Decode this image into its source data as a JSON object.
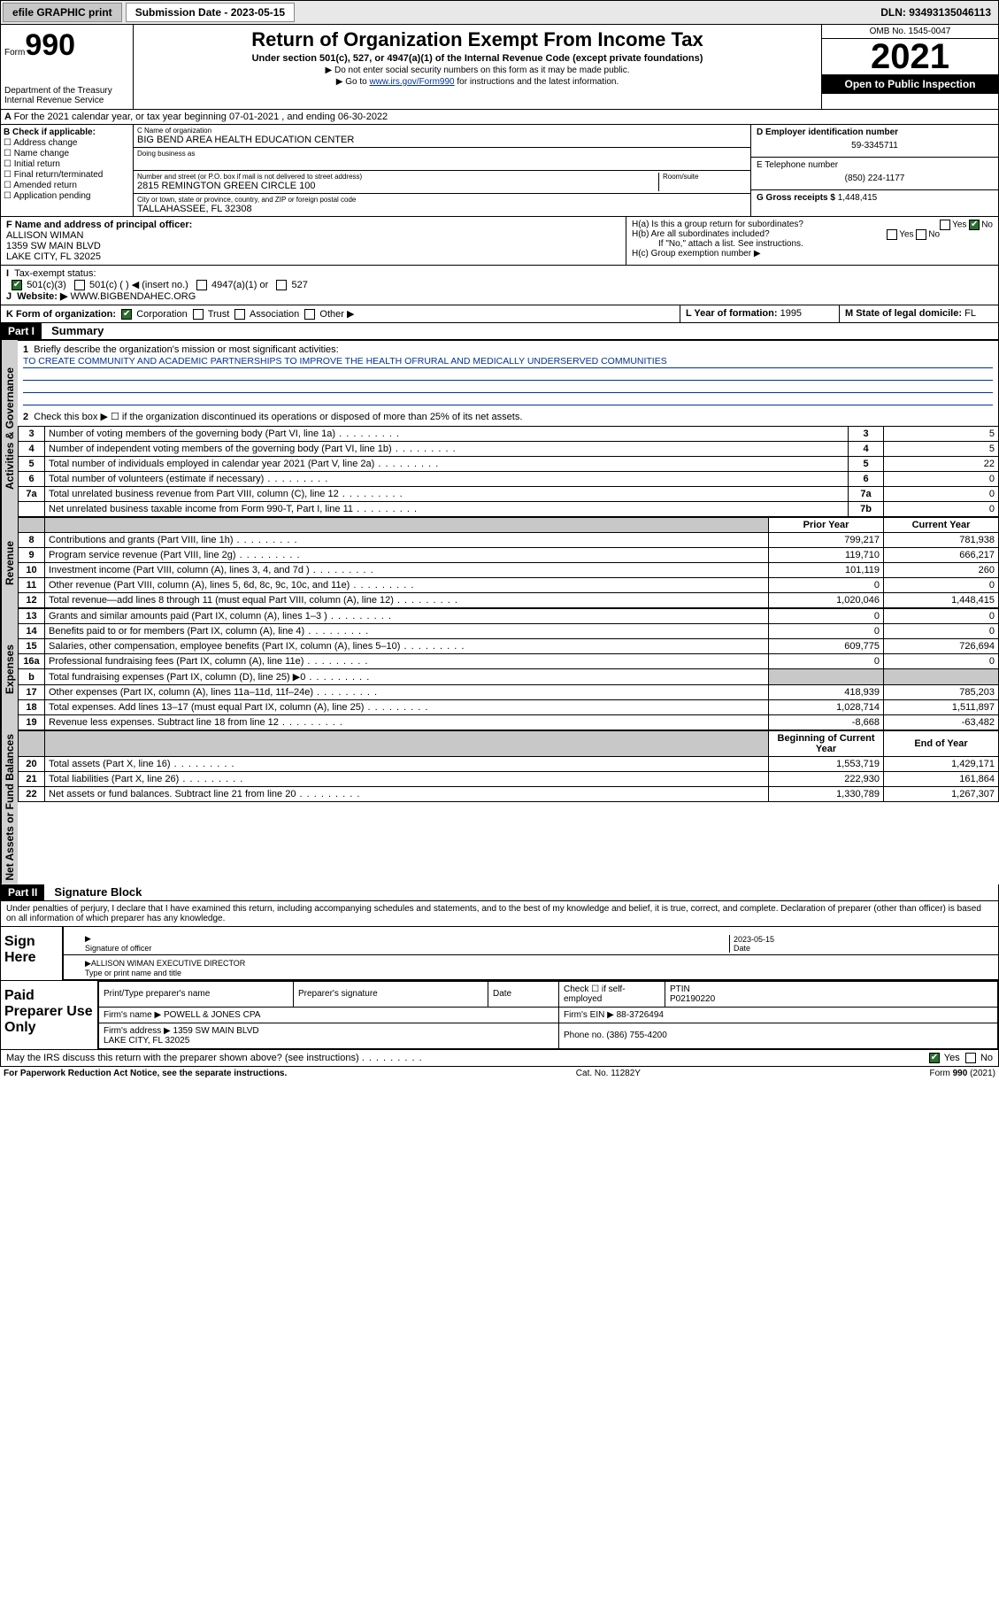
{
  "topbar": {
    "efile": "efile GRAPHIC print",
    "subdate_label": "Submission Date - 2023-05-15",
    "dln": "DLN: 93493135046113"
  },
  "header": {
    "form_word": "Form",
    "form_num": "990",
    "dept": "Department of the Treasury\nInternal Revenue Service",
    "title": "Return of Organization Exempt From Income Tax",
    "subtitle": "Under section 501(c), 527, or 4947(a)(1) of the Internal Revenue Code (except private foundations)",
    "note1": "▶ Do not enter social security numbers on this form as it may be made public.",
    "note2_pre": "▶ Go to ",
    "note2_link": "www.irs.gov/Form990",
    "note2_post": " for instructions and the latest information.",
    "omb": "OMB No. 1545-0047",
    "year": "2021",
    "open": "Open to Public Inspection"
  },
  "line_a": "For the 2021 calendar year, or tax year beginning 07-01-2021    , and ending 06-30-2022",
  "box_b": {
    "title": "B Check if applicable:",
    "items": [
      "Address change",
      "Name change",
      "Initial return",
      "Final return/terminated",
      "Amended return",
      "Application pending"
    ]
  },
  "box_c": {
    "name_lbl": "C Name of organization",
    "name": "BIG BEND AREA HEALTH EDUCATION CENTER",
    "dba_lbl": "Doing business as",
    "addr_lbl": "Number and street (or P.O. box if mail is not delivered to street address)",
    "room_lbl": "Room/suite",
    "addr": "2815 REMINGTON GREEN CIRCLE 100",
    "city_lbl": "City or town, state or province, country, and ZIP or foreign postal code",
    "city": "TALLAHASSEE, FL  32308"
  },
  "box_d": {
    "lbl": "D Employer identification number",
    "val": "59-3345711"
  },
  "box_e": {
    "lbl": "E Telephone number",
    "val": "(850) 224-1177"
  },
  "box_g": {
    "lbl": "G Gross receipts $",
    "val": "1,448,415"
  },
  "box_f": {
    "lbl": "F Name and address of principal officer:",
    "name": "ALLISON WIMAN",
    "addr1": "1359 SW MAIN BLVD",
    "addr2": "LAKE CITY, FL  32025"
  },
  "box_h": {
    "ha": "H(a)  Is this a group return for subordinates?",
    "hb": "H(b)  Are all subordinates included?",
    "hb_note": "If \"No,\" attach a list. See instructions.",
    "hc": "H(c)  Group exemption number ▶",
    "yes": "Yes",
    "no": "No"
  },
  "line_i": {
    "lbl": "Tax-exempt status:",
    "opts": [
      "501(c)(3)",
      "501(c) (   ) ◀ (insert no.)",
      "4947(a)(1) or",
      "527"
    ]
  },
  "line_j": {
    "lbl": "Website: ▶",
    "val": "WWW.BIGBENDAHEC.ORG"
  },
  "line_k": {
    "lbl": "K Form of organization:",
    "opts": [
      "Corporation",
      "Trust",
      "Association",
      "Other ▶"
    ]
  },
  "line_l": {
    "lbl": "L Year of formation:",
    "val": "1995"
  },
  "line_m": {
    "lbl": "M State of legal domicile:",
    "val": "FL"
  },
  "part1": {
    "label": "Part I",
    "title": "Summary",
    "q1": "Briefly describe the organization's mission or most significant activities:",
    "mission": "TO CREATE COMMUNITY AND ACADEMIC PARTNERSHIPS TO IMPROVE THE HEALTH OFRURAL AND MEDICALLY UNDERSERVED COMMUNITIES",
    "q2": "Check this box ▶ ☐  if the organization discontinued its operations or disposed of more than 25% of its net assets.",
    "rows_gov": [
      {
        "n": "3",
        "d": "Number of voting members of the governing body (Part VI, line 1a)",
        "b": "3",
        "v": "5"
      },
      {
        "n": "4",
        "d": "Number of independent voting members of the governing body (Part VI, line 1b)",
        "b": "4",
        "v": "5"
      },
      {
        "n": "5",
        "d": "Total number of individuals employed in calendar year 2021 (Part V, line 2a)",
        "b": "5",
        "v": "22"
      },
      {
        "n": "6",
        "d": "Total number of volunteers (estimate if necessary)",
        "b": "6",
        "v": "0"
      },
      {
        "n": "7a",
        "d": "Total unrelated business revenue from Part VIII, column (C), line 12",
        "b": "7a",
        "v": "0"
      },
      {
        "n": "",
        "d": "Net unrelated business taxable income from Form 990-T, Part I, line 11",
        "b": "7b",
        "v": "0"
      }
    ],
    "hdr_prior": "Prior Year",
    "hdr_curr": "Current Year",
    "rows_rev": [
      {
        "n": "8",
        "d": "Contributions and grants (Part VIII, line 1h)",
        "p": "799,217",
        "c": "781,938"
      },
      {
        "n": "9",
        "d": "Program service revenue (Part VIII, line 2g)",
        "p": "119,710",
        "c": "666,217"
      },
      {
        "n": "10",
        "d": "Investment income (Part VIII, column (A), lines 3, 4, and 7d )",
        "p": "101,119",
        "c": "260"
      },
      {
        "n": "11",
        "d": "Other revenue (Part VIII, column (A), lines 5, 6d, 8c, 9c, 10c, and 11e)",
        "p": "0",
        "c": "0"
      },
      {
        "n": "12",
        "d": "Total revenue—add lines 8 through 11 (must equal Part VIII, column (A), line 12)",
        "p": "1,020,046",
        "c": "1,448,415"
      }
    ],
    "rows_exp": [
      {
        "n": "13",
        "d": "Grants and similar amounts paid (Part IX, column (A), lines 1–3 )",
        "p": "0",
        "c": "0"
      },
      {
        "n": "14",
        "d": "Benefits paid to or for members (Part IX, column (A), line 4)",
        "p": "0",
        "c": "0"
      },
      {
        "n": "15",
        "d": "Salaries, other compensation, employee benefits (Part IX, column (A), lines 5–10)",
        "p": "609,775",
        "c": "726,694"
      },
      {
        "n": "16a",
        "d": "Professional fundraising fees (Part IX, column (A), line 11e)",
        "p": "0",
        "c": "0"
      },
      {
        "n": "b",
        "d": "Total fundraising expenses (Part IX, column (D), line 25) ▶0",
        "p": "",
        "c": "",
        "shade": true
      },
      {
        "n": "17",
        "d": "Other expenses (Part IX, column (A), lines 11a–11d, 11f–24e)",
        "p": "418,939",
        "c": "785,203"
      },
      {
        "n": "18",
        "d": "Total expenses. Add lines 13–17 (must equal Part IX, column (A), line 25)",
        "p": "1,028,714",
        "c": "1,511,897"
      },
      {
        "n": "19",
        "d": "Revenue less expenses. Subtract line 18 from line 12",
        "p": "-8,668",
        "c": "-63,482"
      }
    ],
    "hdr_beg": "Beginning of Current Year",
    "hdr_end": "End of Year",
    "rows_net": [
      {
        "n": "20",
        "d": "Total assets (Part X, line 16)",
        "p": "1,553,719",
        "c": "1,429,171"
      },
      {
        "n": "21",
        "d": "Total liabilities (Part X, line 26)",
        "p": "222,930",
        "c": "161,864"
      },
      {
        "n": "22",
        "d": "Net assets or fund balances. Subtract line 21 from line 20",
        "p": "1,330,789",
        "c": "1,267,307"
      }
    ],
    "vlabels": {
      "gov": "Activities & Governance",
      "rev": "Revenue",
      "exp": "Expenses",
      "net": "Net Assets or Fund Balances"
    }
  },
  "part2": {
    "label": "Part II",
    "title": "Signature Block",
    "intro": "Under penalties of perjury, I declare that I have examined this return, including accompanying schedules and statements, and to the best of my knowledge and belief, it is true, correct, and complete. Declaration of preparer (other than officer) is based on all information of which preparer has any knowledge.",
    "sign_here": "Sign Here",
    "sig_officer": "Signature of officer",
    "date_lbl": "Date",
    "sig_date": "2023-05-15",
    "officer_name": "ALLISON WIMAN  EXECUTIVE DIRECTOR",
    "type_name": "Type or print name and title",
    "paid": "Paid Preparer Use Only",
    "prep_name_lbl": "Print/Type preparer's name",
    "prep_sig_lbl": "Preparer's signature",
    "check_self": "Check ☐ if self-employed",
    "ptin_lbl": "PTIN",
    "ptin": "P02190220",
    "firm_name_lbl": "Firm's name    ▶",
    "firm_name": "POWELL & JONES CPA",
    "firm_ein_lbl": "Firm's EIN ▶",
    "firm_ein": "88-3726494",
    "firm_addr_lbl": "Firm's address ▶",
    "firm_addr": "1359 SW MAIN BLVD\nLAKE CITY, FL  32025",
    "phone_lbl": "Phone no.",
    "phone": "(386) 755-4200",
    "discuss": "May the IRS discuss this return with the preparer shown above? (see instructions)"
  },
  "footer": {
    "left": "For Paperwork Reduction Act Notice, see the separate instructions.",
    "mid": "Cat. No. 11282Y",
    "right": "Form 990 (2021)"
  }
}
